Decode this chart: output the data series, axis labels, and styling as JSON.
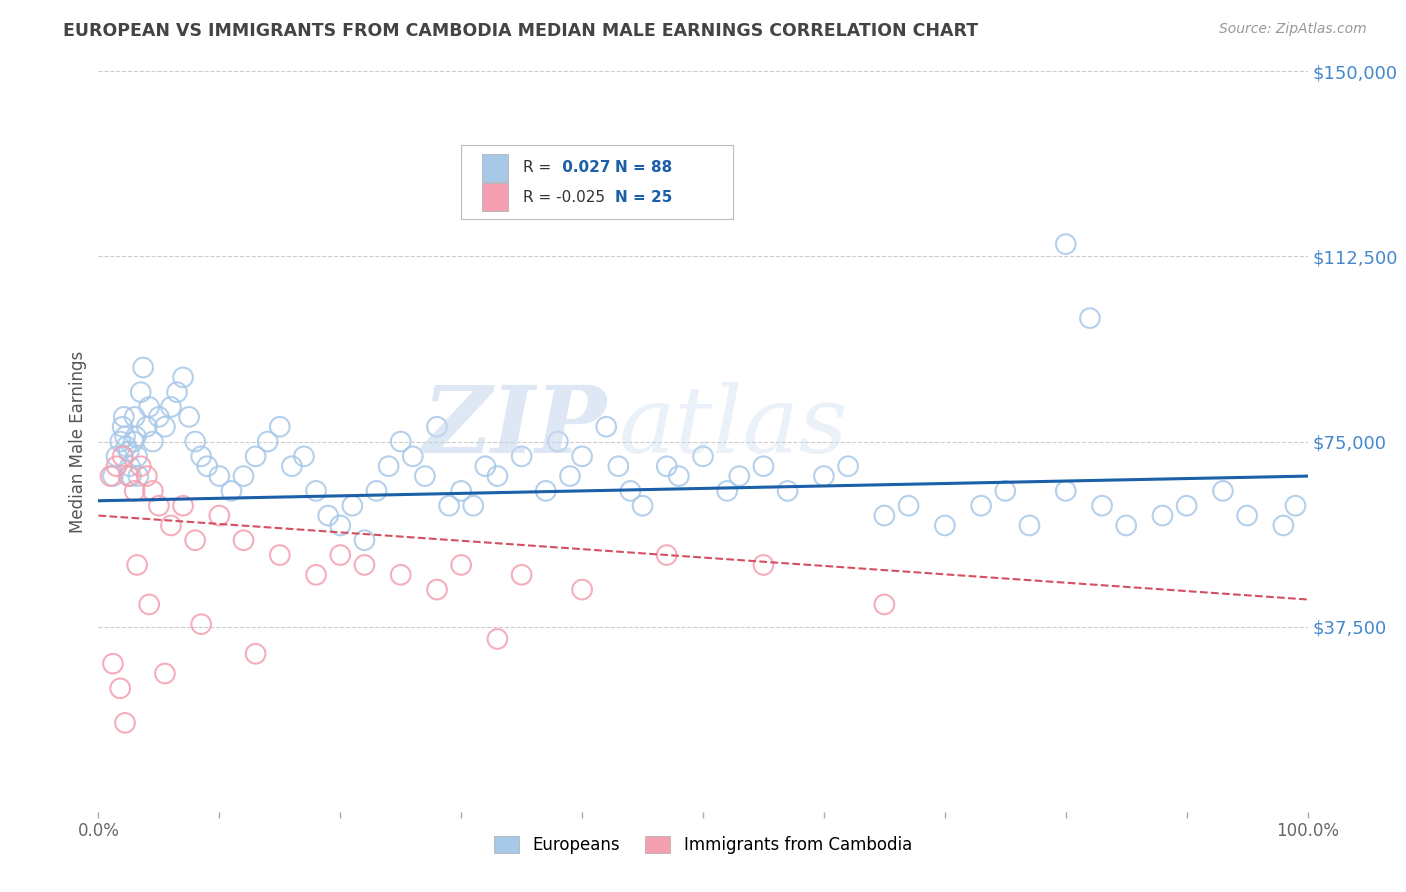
{
  "title": "EUROPEAN VS IMMIGRANTS FROM CAMBODIA MEDIAN MALE EARNINGS CORRELATION CHART",
  "source": "Source: ZipAtlas.com",
  "ylabel": "Median Male Earnings",
  "xlim": [
    0.0,
    100.0
  ],
  "ylim": [
    0,
    150000
  ],
  "yticks": [
    0,
    37500,
    75000,
    112500,
    150000
  ],
  "ytick_labels": [
    "",
    "$37,500",
    "$75,000",
    "$112,500",
    "$150,000"
  ],
  "xtick_labels": [
    "0.0%",
    "100.0%"
  ],
  "color_european": "#a8c8e8",
  "color_cambodia": "#f4a0b0",
  "color_european_line": "#1a5fa8",
  "color_cambodia_line": "#d45060",
  "watermark_zip": "ZIP",
  "watermark_atlas": "atlas",
  "background_color": "#ffffff",
  "grid_color": "#cccccc",
  "title_color": "#444444",
  "axis_label_color": "#555555",
  "tick_color_y": "#4488cc",
  "tick_color_x": "#666666",
  "eu_x": [
    1.2,
    1.5,
    1.8,
    2.0,
    2.1,
    2.2,
    2.3,
    2.5,
    2.6,
    2.7,
    2.9,
    3.0,
    3.1,
    3.2,
    3.3,
    3.5,
    3.7,
    4.0,
    4.2,
    4.5,
    5.0,
    5.5,
    6.0,
    6.5,
    7.0,
    7.5,
    8.0,
    8.5,
    9.0,
    10.0,
    11.0,
    12.0,
    13.0,
    14.0,
    15.0,
    16.0,
    17.0,
    18.0,
    19.0,
    20.0,
    21.0,
    22.0,
    23.0,
    24.0,
    25.0,
    26.0,
    27.0,
    28.0,
    29.0,
    30.0,
    31.0,
    32.0,
    33.0,
    35.0,
    37.0,
    38.0,
    39.0,
    40.0,
    42.0,
    43.0,
    44.0,
    45.0,
    47.0,
    48.0,
    50.0,
    52.0,
    53.0,
    55.0,
    57.0,
    60.0,
    62.0,
    65.0,
    67.0,
    70.0,
    73.0,
    75.0,
    77.0,
    80.0,
    83.0,
    85.0,
    88.0,
    90.0,
    93.0,
    95.0,
    98.0,
    99.0,
    80.0,
    82.0
  ],
  "eu_y": [
    68000,
    72000,
    75000,
    78000,
    80000,
    76000,
    74000,
    73000,
    70000,
    68000,
    75000,
    80000,
    76000,
    72000,
    68000,
    85000,
    90000,
    78000,
    82000,
    75000,
    80000,
    78000,
    82000,
    85000,
    88000,
    80000,
    75000,
    72000,
    70000,
    68000,
    65000,
    68000,
    72000,
    75000,
    78000,
    70000,
    72000,
    65000,
    60000,
    58000,
    62000,
    55000,
    65000,
    70000,
    75000,
    72000,
    68000,
    78000,
    62000,
    65000,
    62000,
    70000,
    68000,
    72000,
    65000,
    75000,
    68000,
    72000,
    78000,
    70000,
    65000,
    62000,
    70000,
    68000,
    72000,
    65000,
    68000,
    70000,
    65000,
    68000,
    70000,
    60000,
    62000,
    58000,
    62000,
    65000,
    58000,
    65000,
    62000,
    58000,
    60000,
    62000,
    65000,
    60000,
    58000,
    62000,
    115000,
    100000
  ],
  "cam_x": [
    1.0,
    1.5,
    2.0,
    2.5,
    3.0,
    3.5,
    4.0,
    4.5,
    5.0,
    6.0,
    7.0,
    8.0,
    10.0,
    12.0,
    15.0,
    18.0,
    20.0,
    22.0,
    25.0,
    28.0,
    30.0,
    35.0,
    40.0,
    55.0,
    65.0
  ],
  "cam_y": [
    68000,
    70000,
    72000,
    68000,
    65000,
    70000,
    68000,
    65000,
    62000,
    58000,
    62000,
    55000,
    60000,
    55000,
    52000,
    48000,
    52000,
    50000,
    48000,
    45000,
    50000,
    48000,
    45000,
    50000,
    42000
  ],
  "cam_extra_low_x": [
    1.2,
    1.8,
    2.2,
    3.2,
    4.2,
    5.5,
    8.5,
    13.0,
    33.0,
    47.0
  ],
  "cam_extra_low_y": [
    30000,
    25000,
    18000,
    50000,
    42000,
    28000,
    38000,
    32000,
    35000,
    52000
  ]
}
